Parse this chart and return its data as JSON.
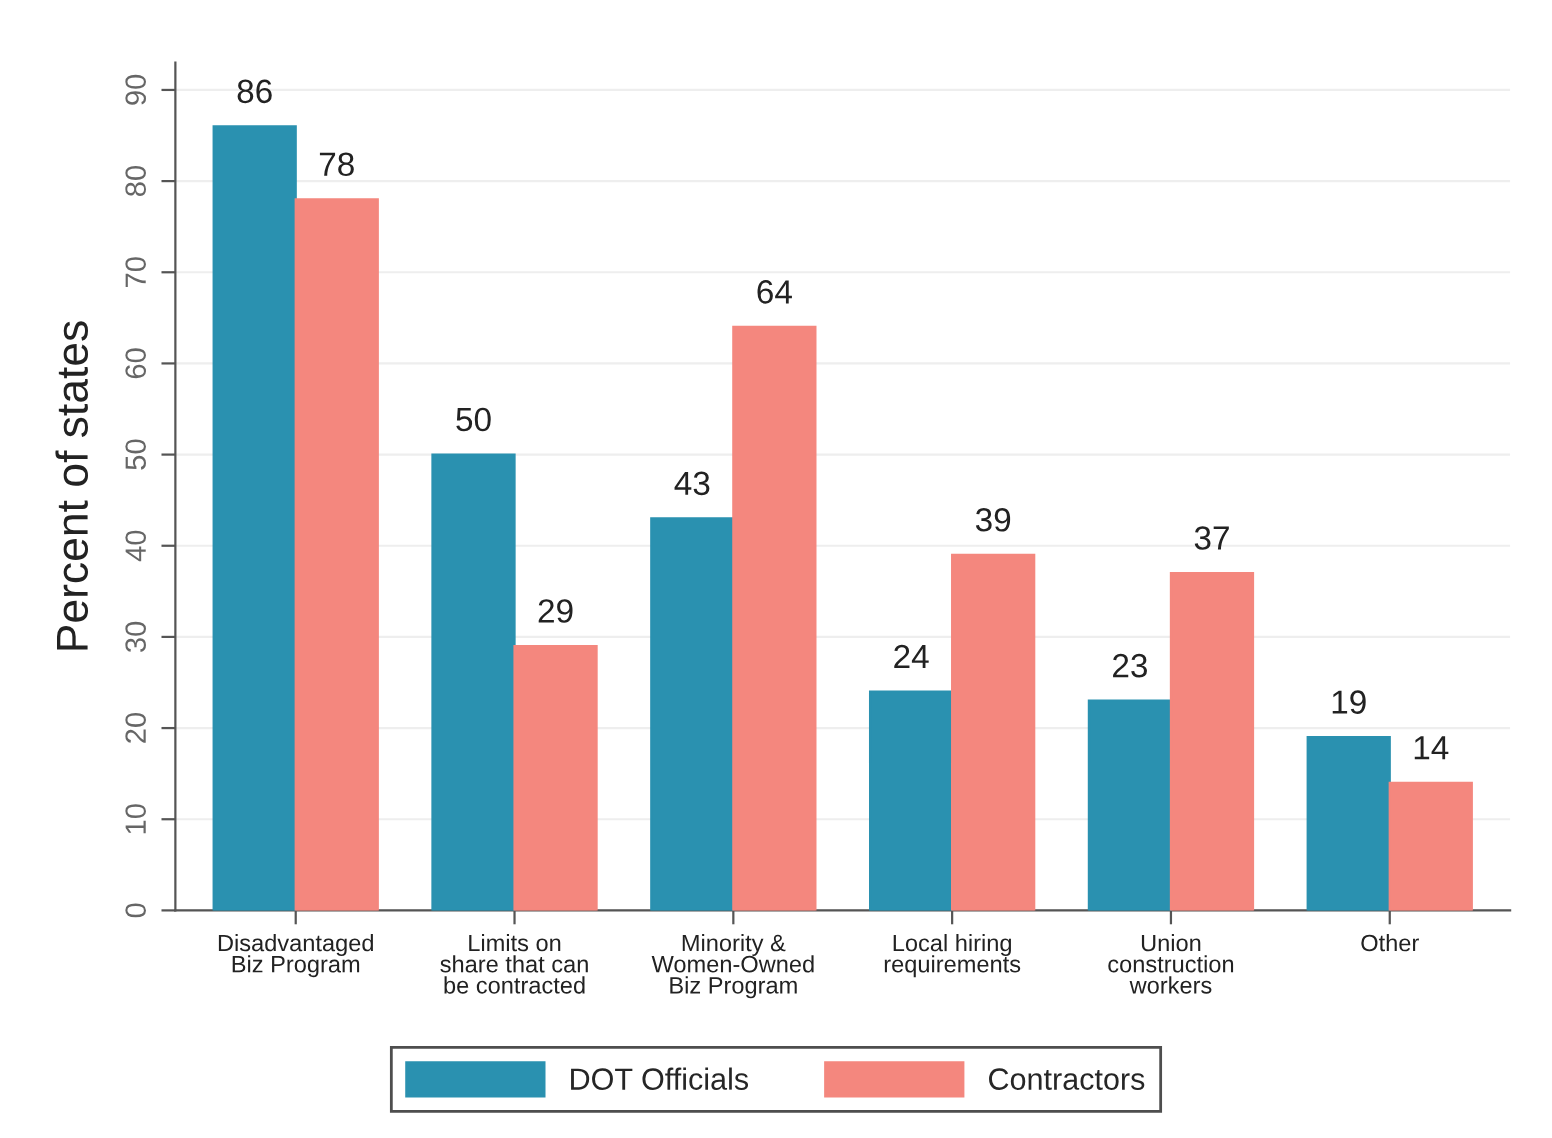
{
  "chart_data": {
    "type": "bar",
    "ylabel": "Percent of states",
    "categories": [
      "Disadvantaged\nBiz Program",
      "Limits on\nshare that can\nbe contracted",
      "Minority &\nWomen-Owned\nBiz Program",
      "Local hiring\nrequirements",
      "Union\nconstruction\nworkers",
      "Other"
    ],
    "series": [
      {
        "name": "DOT Officials",
        "color": "#2a91b0",
        "values": [
          86,
          50,
          43,
          24,
          23,
          19
        ]
      },
      {
        "name": "Contractors",
        "color": "#f4877e",
        "values": [
          78,
          29,
          64,
          39,
          37,
          14
        ]
      }
    ],
    "ylim": [
      0,
      93
    ],
    "yticks": [
      0,
      10,
      20,
      30,
      40,
      50,
      60,
      70,
      80,
      90
    ],
    "grid": "y",
    "legend": "bottom",
    "data_labels": true
  }
}
